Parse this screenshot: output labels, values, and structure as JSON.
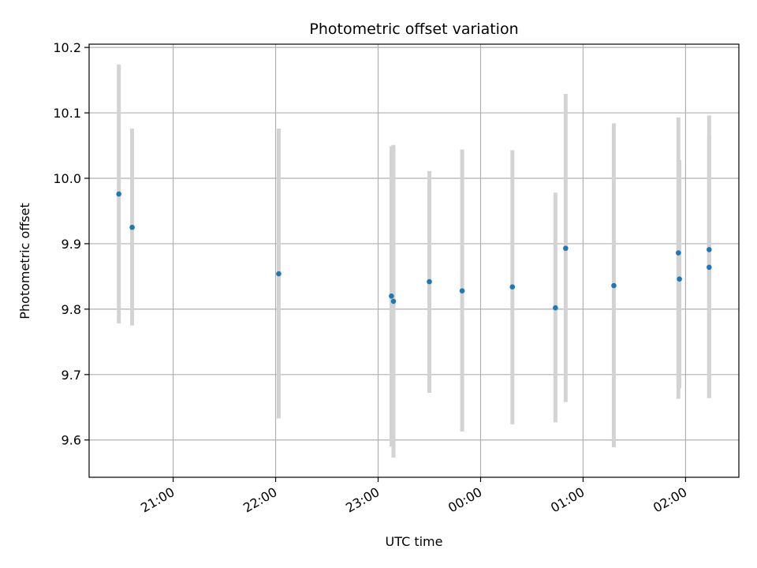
{
  "chart_data": {
    "type": "scatter",
    "title": "Photometric offset variation",
    "xlabel": "UTC time",
    "ylabel": "Photometric offset",
    "x_tick_labels": [
      "21:00",
      "22:00",
      "23:00",
      "00:00",
      "01:00",
      "02:00"
    ],
    "x_tick_hours": [
      21,
      22,
      23,
      24,
      25,
      26
    ],
    "y_tick_labels": [
      "9.6",
      "9.7",
      "9.8",
      "9.9",
      "10.0",
      "10.1",
      "10.2"
    ],
    "xlim_hours": [
      20.18,
      26.52
    ],
    "ylim": [
      9.543,
      10.205
    ],
    "grid": true,
    "colors": {
      "points": "#1f77b4",
      "errorbars": "#d3d3d3",
      "grid": "#b0b0b0",
      "axes": "#000000"
    },
    "series": [
      {
        "x_hours": [
          20.47,
          20.6,
          22.03,
          23.13,
          23.15,
          23.5,
          23.82,
          24.31,
          24.73,
          24.83,
          25.3,
          25.93,
          25.94,
          26.23,
          26.23
        ],
        "y": [
          9.976,
          9.925,
          9.854,
          9.82,
          9.812,
          9.842,
          9.828,
          9.834,
          9.802,
          9.893,
          9.836,
          9.886,
          9.846,
          9.864,
          9.891
        ],
        "err_low": [
          9.778,
          9.775,
          9.633,
          9.59,
          9.573,
          9.672,
          9.613,
          9.624,
          9.627,
          9.658,
          9.589,
          9.663,
          9.679,
          9.664,
          9.664
        ],
        "err_high": [
          10.174,
          10.076,
          10.076,
          10.049,
          10.051,
          10.011,
          10.044,
          10.043,
          9.978,
          10.129,
          10.084,
          10.093,
          10.028,
          10.064,
          10.096
        ]
      }
    ]
  }
}
